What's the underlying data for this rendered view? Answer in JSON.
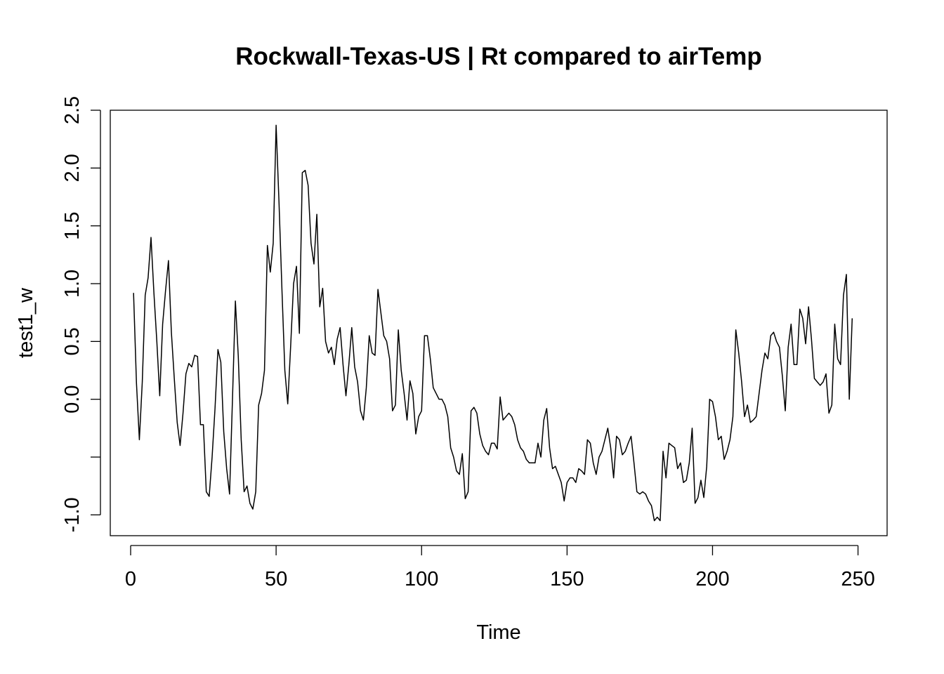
{
  "chart_data": {
    "type": "line",
    "title": "Rockwall-Texas-US | Rt compared to airTemp",
    "xlabel": "Time",
    "ylabel": "test1_w",
    "xlim": [
      -7,
      260
    ],
    "ylim": [
      -1.18,
      2.5
    ],
    "x_ticks": [
      0,
      50,
      100,
      150,
      200,
      250
    ],
    "x_tick_labels": [
      "0",
      "50",
      "100",
      "150",
      "200",
      "250"
    ],
    "y_ticks": [
      -1.0,
      -0.5,
      0.0,
      0.5,
      1.0,
      1.5,
      2.0,
      2.5
    ],
    "y_tick_labels": [
      "-1.0",
      "",
      "0.0",
      "0.5",
      "1.0",
      "1.5",
      "2.0",
      "2.5"
    ],
    "grid": false,
    "legend": "none",
    "color": "#000000",
    "series": [
      {
        "x_start": 1,
        "values": [
          0.92,
          0.14,
          -0.35,
          0.15,
          0.9,
          1.05,
          1.4,
          0.92,
          0.5,
          0.03,
          0.65,
          0.94,
          1.2,
          0.58,
          0.18,
          -0.2,
          -0.4,
          -0.12,
          0.22,
          0.31,
          0.28,
          0.38,
          0.37,
          -0.22,
          -0.22,
          -0.8,
          -0.84,
          -0.5,
          -0.08,
          0.43,
          0.32,
          -0.28,
          -0.6,
          -0.82,
          0.0,
          0.85,
          0.37,
          -0.35,
          -0.8,
          -0.75,
          -0.9,
          -0.95,
          -0.8,
          -0.05,
          0.05,
          0.25,
          1.33,
          1.1,
          1.35,
          2.37,
          1.7,
          0.95,
          0.25,
          -0.04,
          0.46,
          1.0,
          1.15,
          0.57,
          1.96,
          1.98,
          1.85,
          1.35,
          1.17,
          1.6,
          0.8,
          0.96,
          0.5,
          0.4,
          0.45,
          0.3,
          0.52,
          0.62,
          0.3,
          0.03,
          0.3,
          0.62,
          0.28,
          0.15,
          -0.1,
          -0.18,
          0.1,
          0.55,
          0.4,
          0.38,
          0.95,
          0.75,
          0.55,
          0.5,
          0.35,
          -0.1,
          -0.05,
          0.6,
          0.25,
          0.05,
          -0.18,
          0.16,
          0.05,
          -0.3,
          -0.15,
          -0.1,
          0.55,
          0.55,
          0.35,
          0.1,
          0.05,
          0.0,
          0.0,
          -0.05,
          -0.15,
          -0.42,
          -0.5,
          -0.62,
          -0.65,
          -0.47,
          -0.86,
          -0.8,
          -0.1,
          -0.07,
          -0.12,
          -0.3,
          -0.4,
          -0.45,
          -0.48,
          -0.38,
          -0.38,
          -0.43,
          0.02,
          -0.18,
          -0.15,
          -0.12,
          -0.15,
          -0.22,
          -0.35,
          -0.42,
          -0.45,
          -0.52,
          -0.55,
          -0.55,
          -0.55,
          -0.38,
          -0.5,
          -0.18,
          -0.08,
          -0.42,
          -0.6,
          -0.58,
          -0.65,
          -0.72,
          -0.88,
          -0.72,
          -0.68,
          -0.68,
          -0.72,
          -0.6,
          -0.62,
          -0.65,
          -0.35,
          -0.38,
          -0.55,
          -0.65,
          -0.5,
          -0.45,
          -0.35,
          -0.25,
          -0.42,
          -0.68,
          -0.32,
          -0.35,
          -0.48,
          -0.45,
          -0.38,
          -0.32,
          -0.55,
          -0.8,
          -0.82,
          -0.8,
          -0.82,
          -0.88,
          -0.92,
          -1.05,
          -1.02,
          -1.05,
          -0.45,
          -0.68,
          -0.38,
          -0.4,
          -0.42,
          -0.6,
          -0.55,
          -0.72,
          -0.7,
          -0.55,
          -0.25,
          -0.9,
          -0.85,
          -0.7,
          -0.85,
          -0.58,
          0.0,
          -0.02,
          -0.15,
          -0.35,
          -0.32,
          -0.52,
          -0.45,
          -0.35,
          -0.15,
          0.6,
          0.4,
          0.15,
          -0.15,
          -0.05,
          -0.2,
          -0.18,
          -0.15,
          0.05,
          0.25,
          0.4,
          0.35,
          0.55,
          0.58,
          0.5,
          0.45,
          0.2,
          -0.1,
          0.45,
          0.65,
          0.3,
          0.3,
          0.78,
          0.7,
          0.48,
          0.8,
          0.52,
          0.18,
          0.15,
          0.12,
          0.15,
          0.22,
          -0.12,
          -0.05,
          0.65,
          0.35,
          0.3,
          0.9,
          1.08,
          0.0,
          0.7
        ]
      }
    ]
  }
}
